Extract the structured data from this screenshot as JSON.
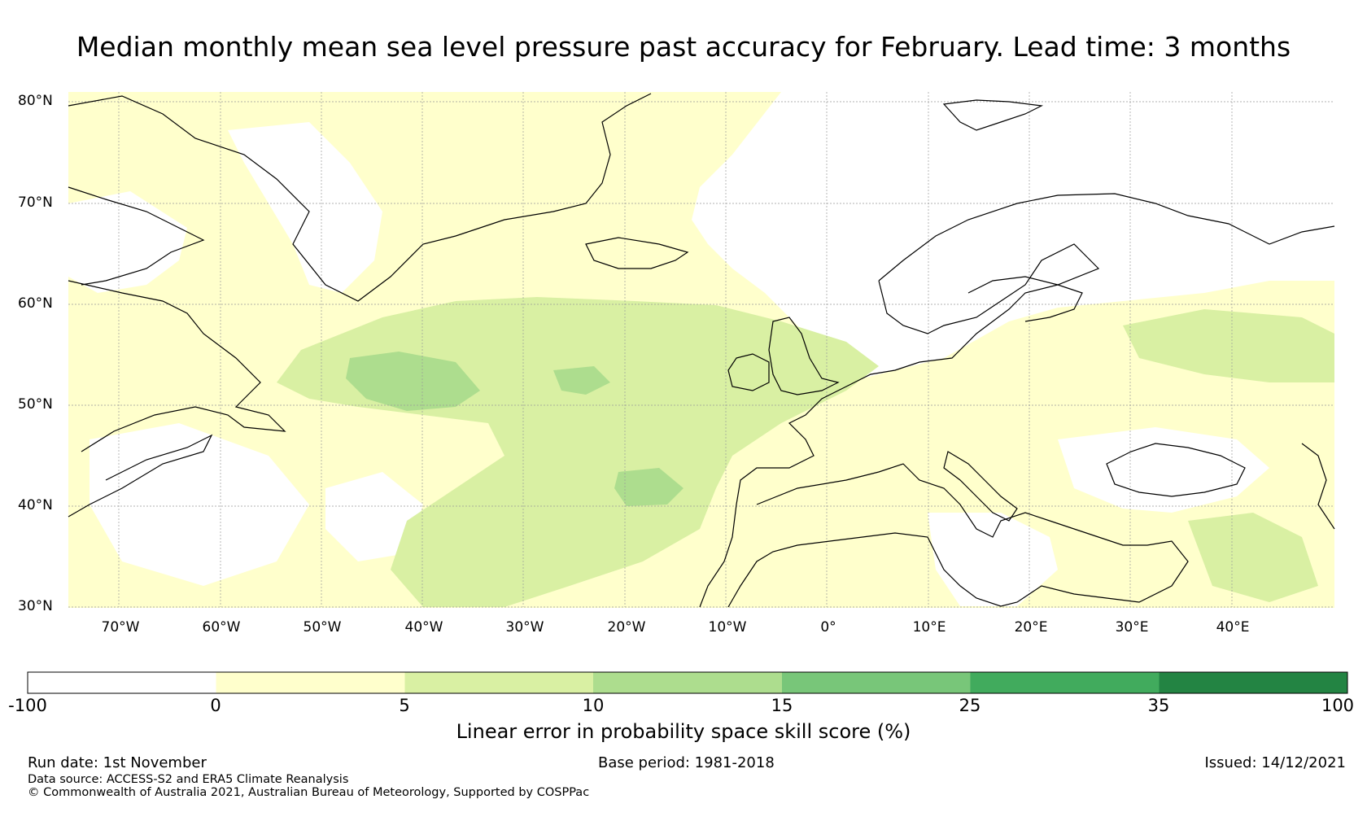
{
  "title": "Median monthly mean sea level pressure past accuracy for February. Lead time: 3 months",
  "map": {
    "lat_ticks": [
      "80°N",
      "70°N",
      "60°N",
      "50°N",
      "40°N",
      "30°N"
    ],
    "lon_ticks": [
      "70°W",
      "60°W",
      "50°W",
      "40°W",
      "30°W",
      "20°W",
      "10°W",
      "0°",
      "10°E",
      "20°E",
      "30°E",
      "40°E"
    ],
    "lon_range_deg": [
      -75,
      50
    ],
    "lat_range_deg": [
      30,
      81
    ],
    "gridlines": true
  },
  "colorbar": {
    "label": "Linear error in probability space skill score (%)",
    "boundaries": [
      "-100",
      "0",
      "5",
      "10",
      "15",
      "25",
      "35",
      "100"
    ],
    "colors": [
      "#ffffff",
      "#ffffcc",
      "#d9f0a3",
      "#addd8e",
      "#78c679",
      "#41ab5d",
      "#238443"
    ]
  },
  "footer": {
    "run_date": "Run date: 1st November",
    "base_period": "Base period: 1981-2018",
    "issued": "Issued: 14/12/2021",
    "data_source": "Data source: ACCESS-S2 and ERA5 Climate Reanalysis",
    "copyright": "© Commonwealth of Australia 2021, Australian Bureau of Meteorology, Supported by COSPPac"
  }
}
